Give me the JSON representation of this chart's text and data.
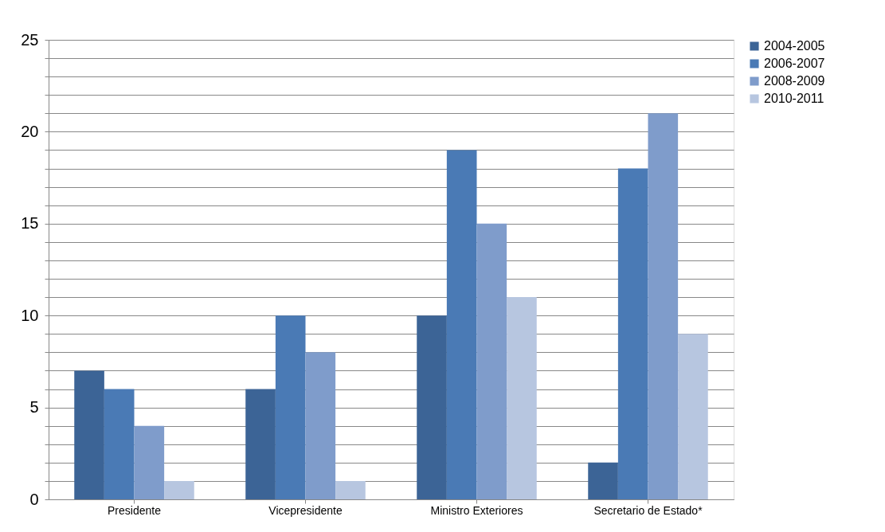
{
  "chart_data": {
    "type": "bar",
    "categories": [
      "Presidente",
      "Vicepresidente",
      "Ministro Exteriores",
      "Secretario de Estado*"
    ],
    "series": [
      {
        "name": "2004-2005",
        "color": "#3c6496",
        "values": [
          7,
          6,
          10,
          2
        ]
      },
      {
        "name": "2006-2007",
        "color": "#4a7ab5",
        "values": [
          6,
          10,
          19,
          18
        ]
      },
      {
        "name": "2008-2009",
        "color": "#7f9ccb",
        "values": [
          4,
          8,
          15,
          21
        ]
      },
      {
        "name": "2010-2011",
        "color": "#b7c6e0",
        "values": [
          1,
          1,
          11,
          9
        ]
      }
    ],
    "ylim": [
      0,
      25
    ],
    "yticks": [
      0,
      {
        "value": 1,
        "label": null
      },
      {
        "value": 2,
        "label": null
      },
      {
        "value": 3,
        "label": null
      },
      {
        "value": 4,
        "label": null
      },
      5,
      {
        "value": 6,
        "label": null
      },
      {
        "value": 7,
        "label": null
      },
      {
        "value": 8,
        "label": null
      },
      {
        "value": 9,
        "label": null
      },
      10,
      {
        "value": 11,
        "label": null
      },
      {
        "value": 12,
        "label": null
      },
      {
        "value": 13,
        "label": null
      },
      {
        "value": 14,
        "label": null
      },
      15,
      {
        "value": 16,
        "label": null
      },
      {
        "value": 17,
        "label": null
      },
      {
        "value": 18,
        "label": null
      },
      {
        "value": 19,
        "label": null
      },
      20,
      {
        "value": 21,
        "label": null
      },
      {
        "value": 22,
        "label": null
      },
      {
        "value": 23,
        "label": null
      },
      {
        "value": 24,
        "label": null
      },
      25
    ],
    "grid": "y",
    "legend": "right"
  }
}
